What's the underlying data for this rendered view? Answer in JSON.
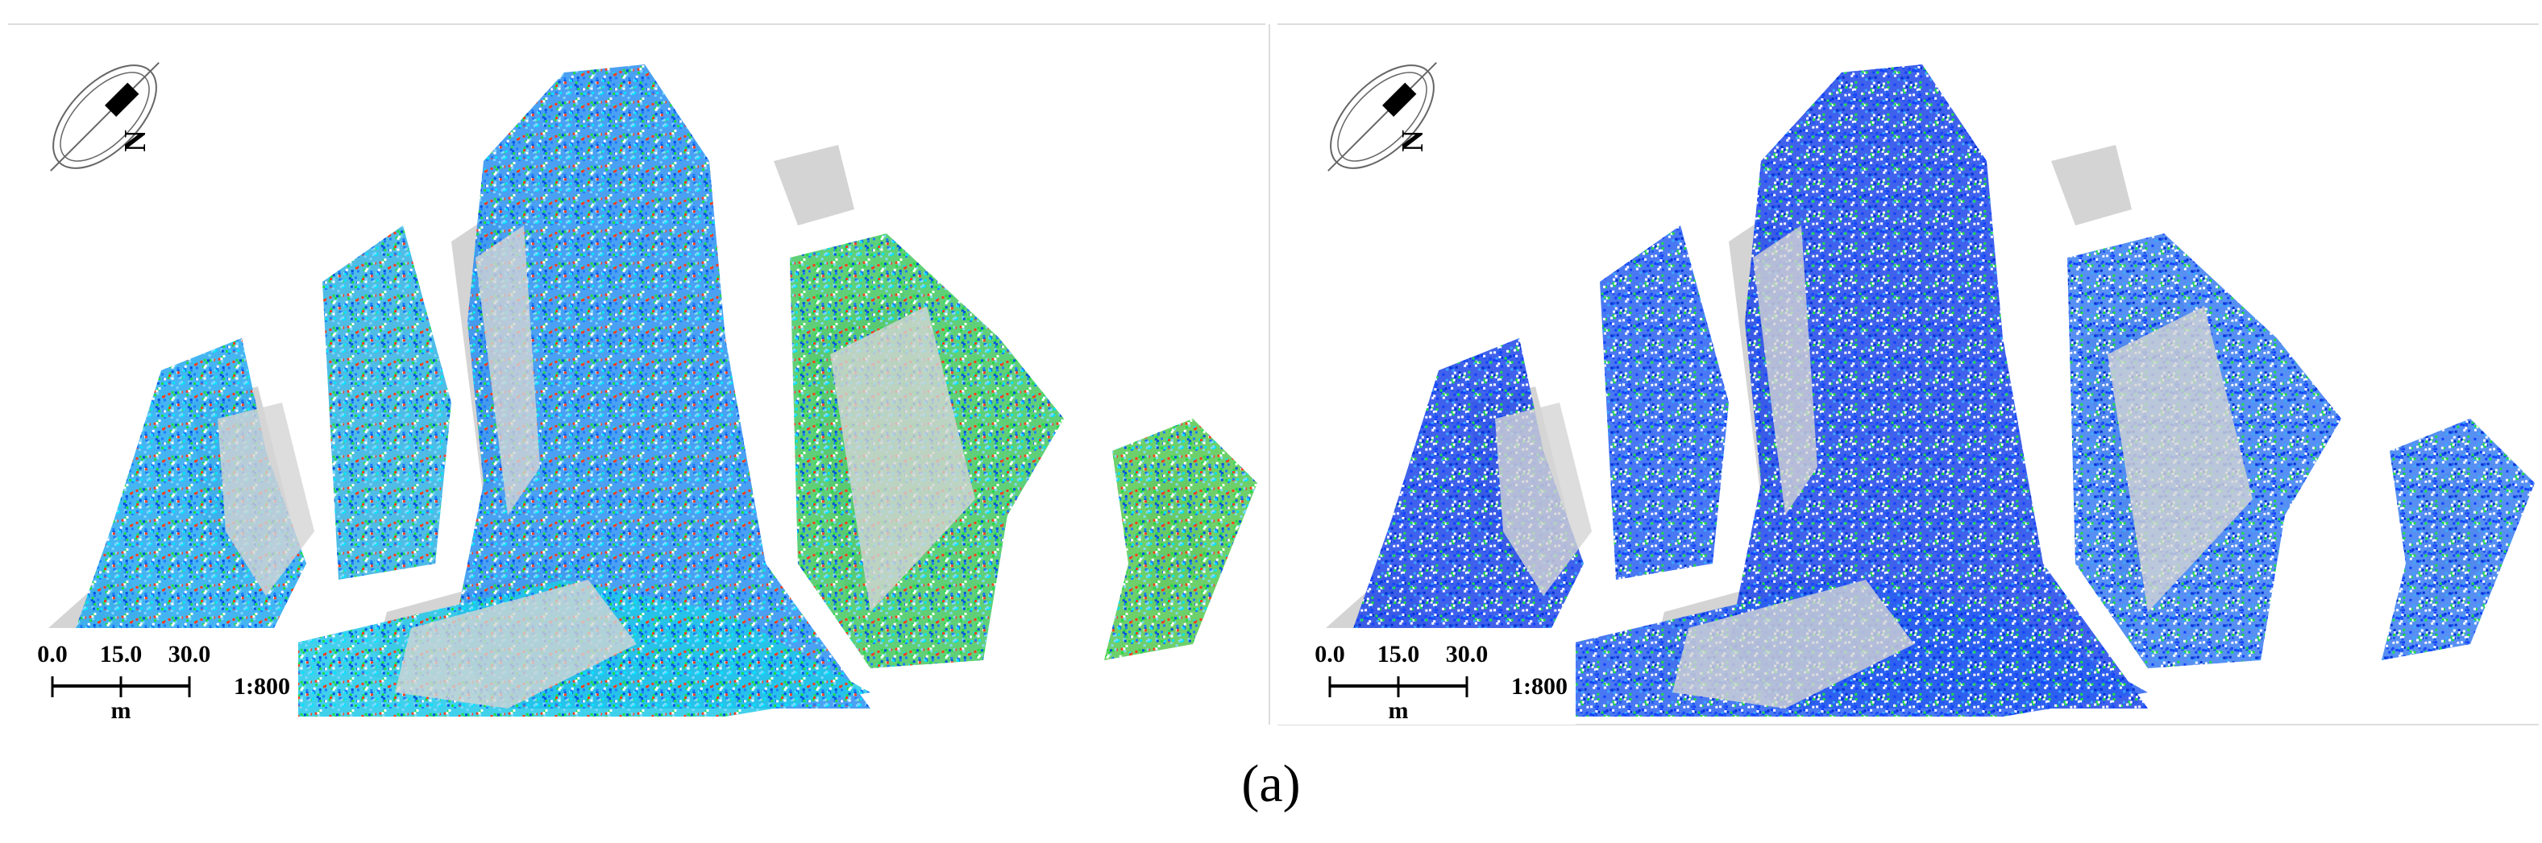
{
  "panels": [
    {
      "north": "N",
      "scale_labels": [
        "0.0",
        "15.0",
        "30.0"
      ],
      "scale_unit": "m",
      "scale_ratio": "1:800"
    },
    {
      "north": "N",
      "scale_labels": [
        "0.0",
        "15.0",
        "30.0"
      ],
      "scale_unit": "m",
      "scale_ratio": "1:800"
    }
  ],
  "caption": "(a)"
}
